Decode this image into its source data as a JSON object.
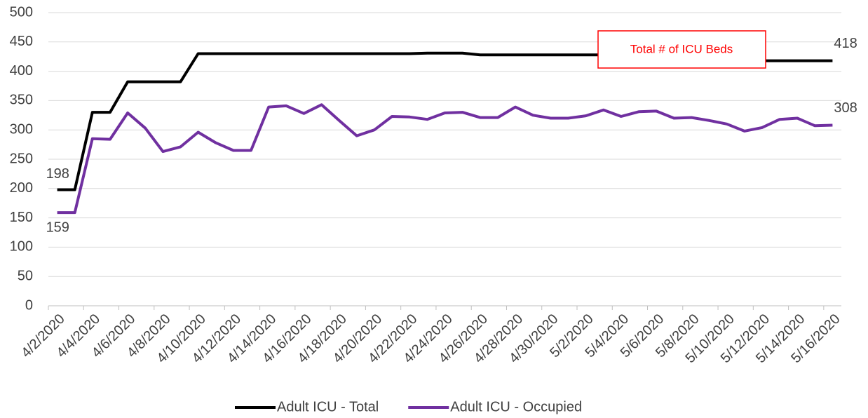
{
  "chart_data": {
    "type": "line",
    "categories": [
      "4/2/2020",
      null,
      "4/4/2020",
      null,
      "4/6/2020",
      null,
      "4/8/2020",
      null,
      "4/10/2020",
      null,
      "4/12/2020",
      null,
      "4/14/2020",
      null,
      "4/16/2020",
      null,
      "4/18/2020",
      null,
      "4/20/2020",
      null,
      "4/22/2020",
      null,
      "4/24/2020",
      null,
      "4/26/2020",
      null,
      "4/28/2020",
      null,
      "4/30/2020",
      null,
      "5/2/2020",
      null,
      "5/4/2020",
      null,
      "5/6/2020",
      null,
      "5/8/2020",
      null,
      "5/10/2020",
      null,
      "5/12/2020",
      null,
      "5/14/2020",
      null,
      "5/16/2020"
    ],
    "series": [
      {
        "name": "Adult ICU - Total",
        "color": "#000000",
        "values": [
          198,
          198,
          330,
          330,
          382,
          382,
          382,
          382,
          430,
          430,
          430,
          430,
          430,
          430,
          430,
          430,
          430,
          430,
          430,
          430,
          430,
          431,
          431,
          431,
          428,
          428,
          428,
          428,
          428,
          428,
          428,
          428,
          428,
          428,
          428,
          428,
          428,
          428,
          418,
          418,
          418,
          418,
          418,
          418,
          418
        ]
      },
      {
        "name": "Adult ICU - Occupied",
        "color": "#7030a0",
        "values": [
          159,
          159,
          285,
          284,
          329,
          303,
          263,
          271,
          296,
          278,
          265,
          265,
          339,
          341,
          328,
          343,
          316,
          290,
          300,
          323,
          322,
          318,
          329,
          330,
          321,
          321,
          339,
          325,
          320,
          320,
          324,
          334,
          323,
          331,
          332,
          320,
          321,
          316,
          310,
          298,
          304,
          318,
          320,
          307,
          308
        ]
      }
    ],
    "ylim": [
      0,
      500
    ],
    "yticks": [
      0,
      50,
      100,
      150,
      200,
      250,
      300,
      350,
      400,
      450,
      500
    ],
    "grid": true,
    "annotation": "Total # of ICU Beds",
    "legend": "bottom"
  }
}
